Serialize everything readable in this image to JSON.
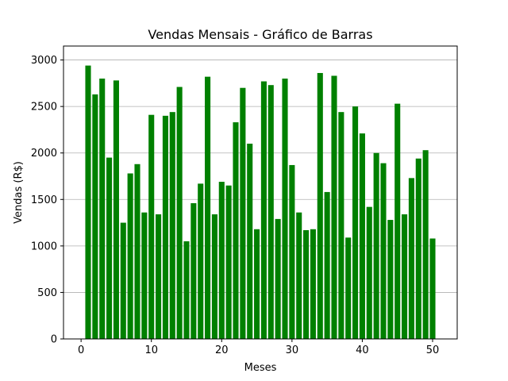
{
  "chart_data": {
    "type": "bar",
    "title": "Vendas Mensais - Gráfico de Barras",
    "xlabel": "Meses",
    "ylabel": "Vendas (R$)",
    "xlim": [
      -2.5,
      53.5
    ],
    "ylim": [
      0,
      3150
    ],
    "xticks": [
      0,
      10,
      20,
      30,
      40,
      50
    ],
    "yticks": [
      0,
      500,
      1000,
      1500,
      2000,
      2500,
      3000
    ],
    "grid": "y",
    "bar_color": "#008000",
    "categories": [
      1,
      2,
      3,
      4,
      5,
      6,
      7,
      8,
      9,
      10,
      11,
      12,
      13,
      14,
      15,
      16,
      17,
      18,
      19,
      20,
      21,
      22,
      23,
      24,
      25,
      26,
      27,
      28,
      29,
      30,
      31,
      32,
      33,
      34,
      35,
      36,
      37,
      38,
      39,
      40,
      41,
      42,
      43,
      44,
      45,
      46,
      47,
      48,
      49,
      50
    ],
    "values": [
      2940,
      2630,
      2800,
      1950,
      2780,
      1250,
      1780,
      1880,
      1360,
      2410,
      1340,
      2400,
      2440,
      2710,
      1050,
      1460,
      1670,
      2820,
      1340,
      1690,
      1650,
      2330,
      2700,
      2100,
      1180,
      2770,
      2730,
      1290,
      2800,
      1870,
      1360,
      1170,
      1180,
      2860,
      1580,
      2830,
      2440,
      1090,
      2500,
      2210,
      1420,
      2000,
      1890,
      1280,
      2530,
      1340,
      1730,
      1940,
      2030,
      1080
    ]
  }
}
